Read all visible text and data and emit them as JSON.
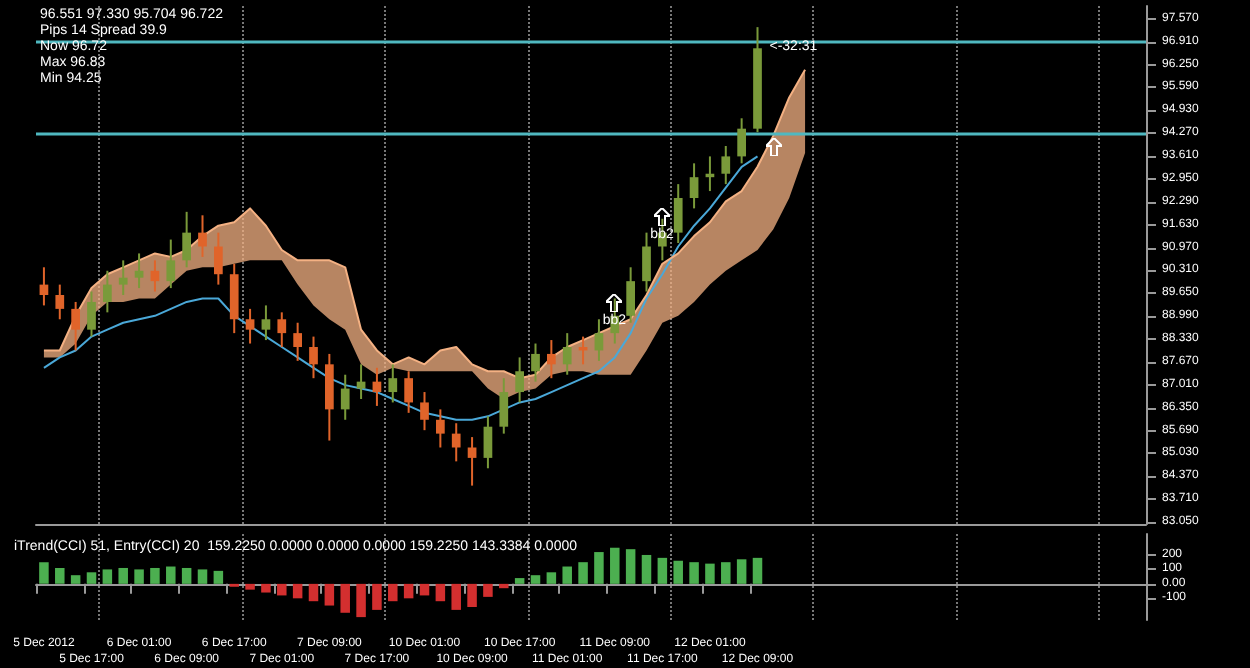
{
  "chart_data": [
    {
      "type": "candlestick",
      "categories": [
        null,
        null,
        null,
        null,
        null,
        null,
        null,
        null,
        null,
        null,
        null,
        null,
        null,
        null,
        null,
        null,
        null,
        null,
        null,
        null,
        null,
        null,
        null,
        null,
        null,
        null,
        null,
        null,
        null,
        null,
        null,
        null,
        null,
        null,
        null,
        null,
        null,
        null,
        null,
        null,
        null,
        null,
        null,
        null,
        null,
        null,
        null,
        null,
        null,
        null,
        null,
        null,
        null,
        null,
        null,
        null,
        null,
        null,
        null,
        null,
        null,
        null,
        null,
        null,
        null,
        null,
        null,
        null,
        null,
        null
      ],
      "ohlc": [
        [
          89.9,
          90.4,
          89.3,
          89.6
        ],
        [
          89.6,
          89.9,
          88.9,
          89.2
        ],
        [
          89.2,
          89.4,
          88.0,
          88.6
        ],
        [
          88.6,
          89.7,
          88.4,
          89.4
        ],
        [
          89.4,
          90.3,
          89.1,
          89.9
        ],
        [
          89.9,
          90.6,
          89.6,
          90.1
        ],
        [
          90.1,
          90.8,
          89.8,
          90.3
        ],
        [
          90.3,
          90.6,
          89.7,
          90.0
        ],
        [
          90.0,
          91.2,
          89.8,
          90.6
        ],
        [
          90.6,
          92.0,
          90.4,
          91.4
        ],
        [
          91.4,
          91.9,
          90.7,
          91.0
        ],
        [
          91.0,
          91.4,
          89.9,
          90.2
        ],
        [
          90.2,
          90.5,
          88.5,
          88.9
        ],
        [
          88.9,
          89.2,
          88.2,
          88.6
        ],
        [
          88.6,
          89.3,
          88.3,
          88.9
        ],
        [
          88.9,
          89.1,
          88.1,
          88.5
        ],
        [
          88.5,
          88.8,
          87.7,
          88.1
        ],
        [
          88.1,
          88.4,
          87.2,
          87.6
        ],
        [
          87.6,
          87.9,
          85.4,
          86.3
        ],
        [
          86.3,
          87.3,
          86.0,
          86.9
        ],
        [
          86.9,
          87.6,
          86.6,
          87.1
        ],
        [
          87.1,
          87.5,
          86.4,
          86.8
        ],
        [
          86.8,
          87.6,
          86.5,
          87.2
        ],
        [
          87.2,
          87.4,
          86.2,
          86.5
        ],
        [
          86.5,
          86.8,
          85.7,
          86.0
        ],
        [
          86.0,
          86.3,
          85.2,
          85.6
        ],
        [
          85.6,
          85.9,
          84.8,
          85.2
        ],
        [
          85.2,
          85.5,
          84.1,
          84.9
        ],
        [
          84.9,
          86.1,
          84.6,
          85.8
        ],
        [
          85.8,
          87.2,
          85.6,
          86.8
        ],
        [
          86.8,
          87.8,
          86.5,
          87.4
        ],
        [
          87.4,
          88.2,
          87.1,
          87.9
        ],
        [
          87.9,
          88.3,
          87.2,
          87.6
        ],
        [
          87.6,
          88.5,
          87.3,
          88.1
        ],
        [
          88.1,
          88.4,
          87.6,
          88.0
        ],
        [
          88.0,
          88.9,
          87.7,
          88.5
        ],
        [
          88.5,
          89.5,
          88.2,
          89.0
        ],
        [
          89.0,
          90.4,
          88.8,
          90.0
        ],
        [
          90.0,
          91.4,
          89.7,
          91.0
        ],
        [
          91.0,
          91.8,
          90.6,
          91.4
        ],
        [
          91.4,
          92.8,
          91.1,
          92.4
        ],
        [
          92.4,
          93.4,
          92.1,
          93.0
        ],
        [
          93.0,
          93.6,
          92.6,
          93.1
        ],
        [
          93.1,
          93.9,
          92.8,
          93.6
        ],
        [
          93.6,
          94.7,
          93.4,
          94.4
        ],
        [
          94.4,
          97.33,
          94.3,
          96.72
        ],
        null,
        null,
        null,
        null,
        null,
        null,
        null,
        null,
        null,
        null,
        null,
        null,
        null,
        null,
        null,
        null,
        null,
        null,
        null,
        null,
        null,
        null,
        null,
        null
      ],
      "colors": [
        "#e0642a",
        "#e0642a",
        "#e0642a",
        "#7a9a3a",
        "#7a9a3a",
        "#7a9a3a",
        "#7a9a3a",
        "#e0642a",
        "#7a9a3a",
        "#7a9a3a",
        "#e0642a",
        "#e0642a",
        "#e0642a",
        "#e0642a",
        "#7a9a3a",
        "#e0642a",
        "#e0642a",
        "#e0642a",
        "#e0642a",
        "#7a9a3a",
        "#7a9a3a",
        "#e0642a",
        "#7a9a3a",
        "#e0642a",
        "#e0642a",
        "#e0642a",
        "#e0642a",
        "#e0642a",
        "#7a9a3a",
        "#7a9a3a",
        "#7a9a3a",
        "#7a9a3a",
        "#e0642a",
        "#7a9a3a",
        "#e0642a",
        "#7a9a3a",
        "#7a9a3a",
        "#7a9a3a",
        "#7a9a3a",
        "#7a9a3a",
        "#7a9a3a",
        "#7a9a3a",
        "#7a9a3a",
        "#7a9a3a",
        "#7a9a3a",
        "#7a9a3a",
        null,
        null,
        null,
        null,
        null,
        null,
        null,
        null,
        null,
        null,
        null,
        null,
        null,
        null,
        null,
        null,
        null,
        null,
        null,
        null,
        null,
        null,
        null,
        null
      ],
      "series": [
        {
          "type": "line",
          "color": "#4aa8d8",
          "values": [
            87.5,
            87.8,
            88.0,
            88.4,
            88.6,
            88.8,
            88.9,
            89.0,
            89.2,
            89.4,
            89.5,
            89.5,
            89.0,
            88.7,
            88.4,
            88.1,
            87.8,
            87.5,
            87.2,
            87.0,
            86.9,
            86.8,
            86.6,
            86.4,
            86.2,
            86.1,
            86.0,
            86.0,
            86.1,
            86.3,
            86.5,
            86.6,
            86.8,
            87.0,
            87.2,
            87.4,
            87.8,
            88.5,
            89.5,
            90.2,
            91.0,
            91.6,
            92.1,
            92.7,
            93.3,
            93.6,
            null,
            null,
            null,
            null,
            null,
            null,
            null,
            null,
            null,
            null,
            null,
            null,
            null,
            null,
            null,
            null,
            null,
            null,
            null,
            null,
            null,
            null,
            null,
            null
          ]
        },
        {
          "type": "line",
          "color": "#f4b183",
          "values": [
            88.0,
            88.0,
            89.0,
            89.8,
            90.2,
            90.4,
            90.6,
            90.8,
            90.7,
            90.9,
            91.3,
            91.6,
            91.7,
            92.1,
            91.6,
            90.9,
            90.6,
            90.6,
            90.6,
            90.4,
            88.6,
            88.0,
            87.6,
            87.8,
            87.6,
            88.0,
            88.1,
            87.6,
            87.4,
            87.4,
            87.2,
            87.3,
            87.8,
            88.1,
            88.3,
            88.5,
            88.7,
            88.9,
            89.6,
            90.5,
            90.8,
            91.3,
            91.7,
            92.3,
            92.6,
            93.3,
            94.2,
            95.3,
            96.1,
            null,
            null,
            null,
            null,
            null,
            null,
            null,
            null,
            null,
            null,
            null,
            null,
            null,
            null,
            null,
            null,
            null,
            null,
            null,
            null,
            null
          ],
          "lower": [
            87.8,
            87.8,
            88.2,
            89.0,
            89.4,
            89.4,
            89.5,
            89.5,
            89.9,
            90.3,
            90.4,
            90.4,
            90.5,
            90.6,
            90.6,
            90.6,
            89.9,
            89.3,
            88.9,
            88.6,
            87.6,
            87.3,
            87.5,
            87.4,
            87.4,
            87.4,
            87.4,
            87.4,
            86.9,
            86.6,
            86.8,
            86.9,
            87.3,
            87.4,
            87.4,
            87.3,
            87.3,
            87.3,
            88.0,
            88.8,
            89.0,
            89.4,
            89.9,
            90.3,
            90.6,
            90.9,
            91.5,
            92.4,
            93.7,
            null,
            null,
            null,
            null,
            null,
            null,
            null,
            null,
            null,
            null,
            null,
            null,
            null,
            null,
            null,
            null,
            null,
            null,
            null,
            null,
            null
          ],
          "upper": [
            88.0,
            88.0,
            89.0,
            89.8,
            90.2,
            90.4,
            90.6,
            90.8,
            90.7,
            90.9,
            91.3,
            91.6,
            91.7,
            92.1,
            91.6,
            90.9,
            90.6,
            90.6,
            90.6,
            90.4,
            88.6,
            88.0,
            87.6,
            87.8,
            87.6,
            88.0,
            88.1,
            87.6,
            87.4,
            87.4,
            87.2,
            87.3,
            87.8,
            88.1,
            88.3,
            88.5,
            88.7,
            88.9,
            89.6,
            90.5,
            90.8,
            91.3,
            91.7,
            92.3,
            92.6,
            93.3,
            94.2,
            95.3,
            96.1,
            null,
            null,
            null,
            null,
            null,
            null,
            null,
            null,
            null,
            null,
            null,
            null,
            null,
            null,
            null,
            null,
            null,
            null,
            null,
            null,
            null
          ]
        }
      ],
      "ylim": [
        82.99,
        97.94
      ],
      "yticks": [
        {
          "value": 97.57,
          "label": "97.570"
        },
        {
          "value": 96.91,
          "label": "96.910"
        },
        {
          "value": 96.25,
          "label": "96.250"
        },
        {
          "value": 95.59,
          "label": "95.590"
        },
        {
          "value": 94.93,
          "label": "94.930"
        },
        {
          "value": 94.27,
          "label": "94.270"
        },
        {
          "value": 93.61,
          "label": "93.610"
        },
        {
          "value": 92.95,
          "label": "92.950"
        },
        {
          "value": 92.29,
          "label": "92.290"
        },
        {
          "value": 91.63,
          "label": "91.630"
        },
        {
          "value": 90.97,
          "label": "90.970"
        },
        {
          "value": 90.31,
          "label": "90.310"
        },
        {
          "value": 89.65,
          "label": "89.650"
        },
        {
          "value": 88.99,
          "label": "88.990"
        },
        {
          "value": 88.33,
          "label": "88.330"
        },
        {
          "value": 87.67,
          "label": "87.670"
        },
        {
          "value": 87.01,
          "label": "87.010"
        },
        {
          "value": 86.35,
          "label": "86.350"
        },
        {
          "value": 85.69,
          "label": "85.690"
        },
        {
          "value": 85.03,
          "label": "85.030"
        },
        {
          "value": 84.37,
          "label": "84.370"
        },
        {
          "value": 83.71,
          "label": "83.710"
        },
        {
          "value": 83.05,
          "label": "83.050"
        }
      ],
      "tick_labels": "y",
      "grid": "x",
      "ref_lines": [
        {
          "axis": "y",
          "value": 96.9,
          "color": "#4fb8c0"
        },
        {
          "axis": "y",
          "value": 94.27,
          "color": "#4fb8c0"
        }
      ],
      "annotations": [
        "96.551 97.330 95.704 96.722",
        "Pips 14 Spread 39.9",
        "Now 96.72",
        "Max 96.83",
        "Min 94.25",
        "<-32:31",
        {
          "text": "bb2",
          "y": 88.8
        },
        {
          "text": "bb2",
          "y": 91.3
        }
      ]
    },
    {
      "type": "bar",
      "title": "iTrend(CCI) 51, Entry(CCI) 20  159.2250 0.0000 0.0000 0.0000 159.2250 143.3384 0.0000",
      "categories": [
        "5 Dec 2012",
        null,
        null,
        "5 Dec 17:00",
        null,
        null,
        "6 Dec 01:00",
        null,
        null,
        "6 Dec 09:00",
        null,
        null,
        "6 Dec 17:00",
        null,
        null,
        "7 Dec 01:00",
        null,
        null,
        "7 Dec 09:00",
        null,
        null,
        "7 Dec 17:00",
        null,
        null,
        "10 Dec 01:00",
        null,
        null,
        "10 Dec 09:00",
        null,
        null,
        "10 Dec 17:00",
        null,
        null,
        "11 Dec 01:00",
        null,
        null,
        "11 Dec 09:00",
        null,
        null,
        "11 Dec 17:00",
        null,
        null,
        "12 Dec 01:00",
        null,
        null,
        "12 Dec 09:00",
        null,
        null,
        null,
        null,
        null,
        null,
        null,
        null,
        null,
        null,
        null,
        null,
        null,
        null,
        null,
        null,
        null,
        null,
        null,
        null,
        null,
        null,
        null,
        null
      ],
      "stacked": true,
      "series": [
        {
          "color": "#4caf50",
          "values": [
            150,
            110,
            60,
            80,
            100,
            110,
            100,
            110,
            120,
            110,
            100,
            90,
            null,
            null,
            null,
            null,
            null,
            null,
            null,
            null,
            null,
            null,
            null,
            null,
            null,
            null,
            null,
            null,
            null,
            null,
            40,
            60,
            80,
            120,
            150,
            220,
            250,
            240,
            200,
            180,
            160,
            150,
            140,
            150,
            170,
            180,
            null,
            null,
            null,
            null,
            null,
            null,
            null,
            null,
            null,
            null,
            null,
            null,
            null,
            null,
            null,
            null,
            null,
            null,
            null,
            null,
            null,
            null,
            null,
            null
          ]
        },
        {
          "color": "#d32f2f",
          "values": [
            null,
            null,
            null,
            null,
            null,
            null,
            null,
            null,
            null,
            null,
            null,
            null,
            -20,
            -40,
            -60,
            -80,
            -100,
            -120,
            -150,
            -200,
            -230,
            -180,
            -120,
            -100,
            -80,
            -120,
            -180,
            -160,
            -90,
            -30,
            null,
            null,
            null,
            null,
            null,
            null,
            null,
            null,
            null,
            null,
            null,
            null,
            null,
            null,
            null,
            null,
            null,
            null,
            null,
            null,
            null,
            null,
            null,
            null,
            null,
            null,
            null,
            null,
            null,
            null,
            null,
            null,
            null,
            null,
            null,
            null,
            null,
            null,
            null,
            null
          ]
        }
      ],
      "ylim": [
        -250,
        345
      ],
      "yticks": [
        200,
        100,
        {
          "value": 0,
          "label": "0.00"
        },
        -100
      ],
      "grid": "x"
    }
  ]
}
